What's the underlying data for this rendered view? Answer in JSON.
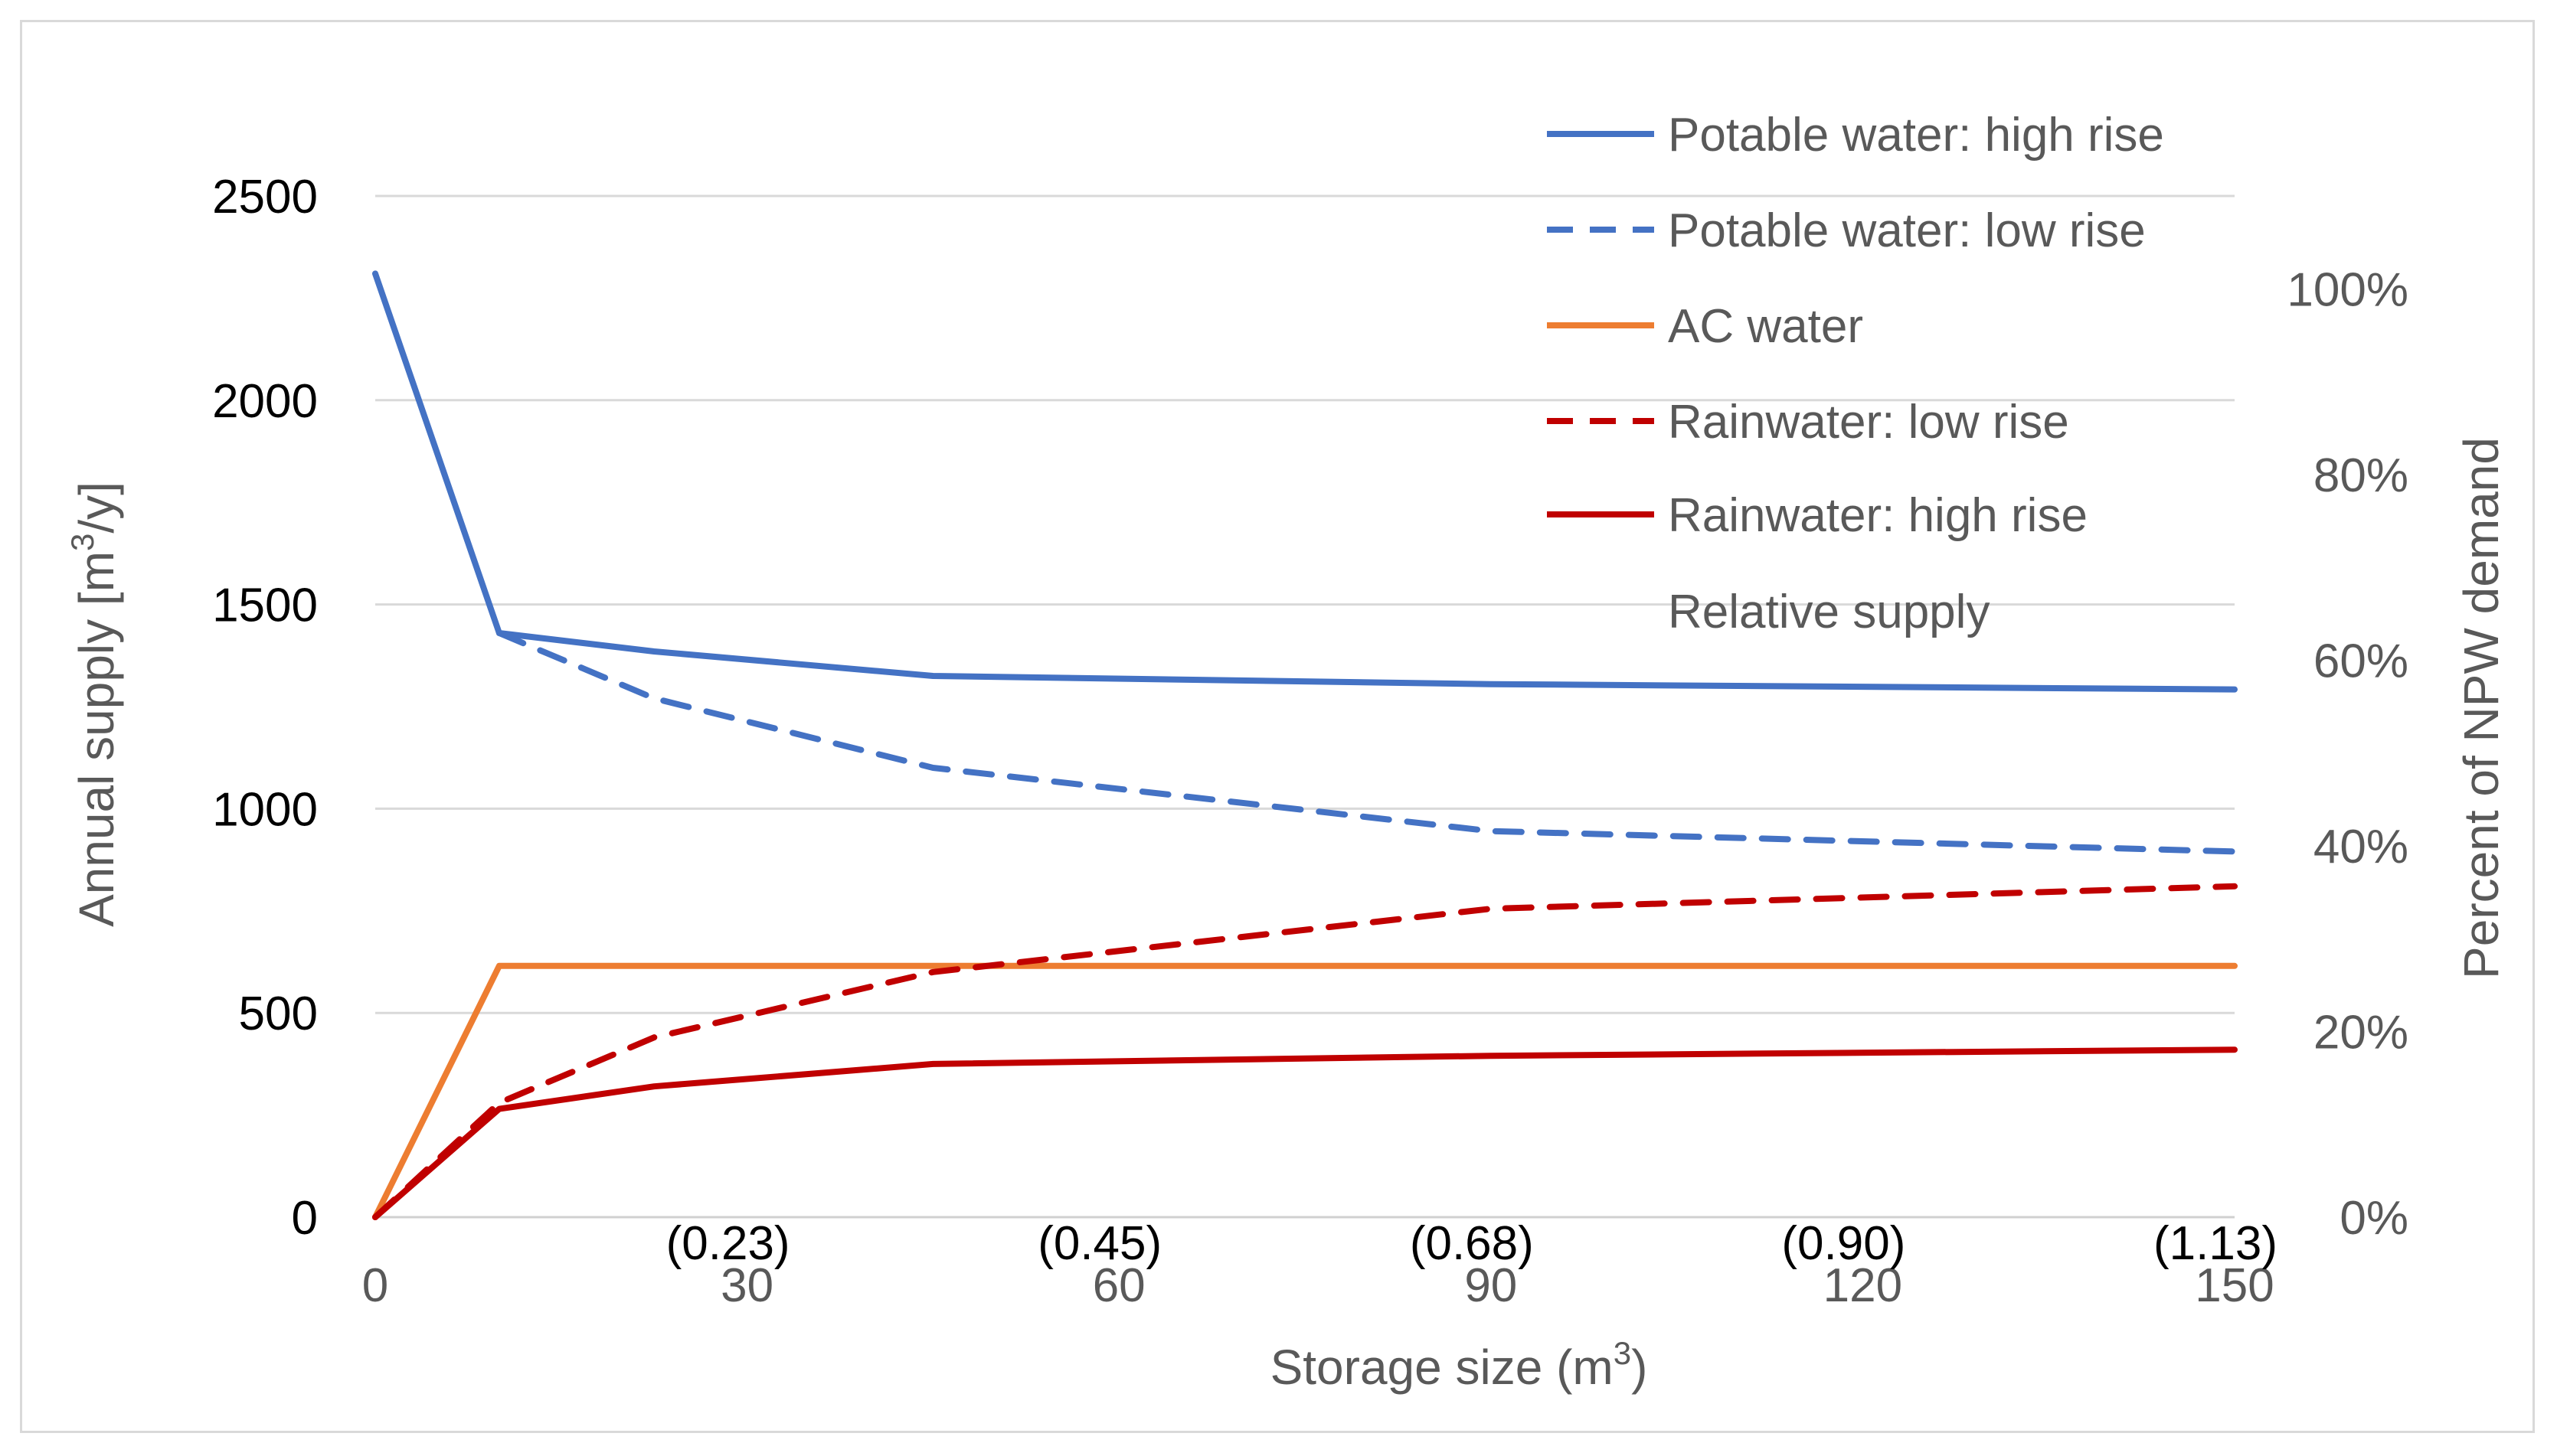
{
  "chart_data": {
    "type": "line",
    "title": "",
    "xlabel": "Storage size (m",
    "xlabel_sup": "3",
    "xlabel_end": ")",
    "ylabel": "Annual supply [m",
    "ylabel_sup": "3",
    "ylabel_end": "/y]",
    "y2label": "Percent of NPW demand",
    "xlim": [
      0,
      150
    ],
    "ylim": [
      0,
      2500
    ],
    "y2lim": [
      0,
      1.1
    ],
    "x_ticks": [
      "0",
      "30",
      "60",
      "90",
      "120",
      "150"
    ],
    "x_tick_values": [
      0,
      30,
      60,
      90,
      120,
      150
    ],
    "x_secondary_ticks": [
      "(0.23)",
      "(0.45)",
      "(0.68)",
      "(0.90)",
      "(1.13)"
    ],
    "x_secondary_tick_values": [
      30,
      60,
      90,
      120,
      150
    ],
    "y_ticks": [
      "0",
      "500",
      "1000",
      "1500",
      "2000",
      "2500"
    ],
    "y_tick_values": [
      0,
      500,
      1000,
      1500,
      2000,
      2500
    ],
    "y2_ticks": [
      "0%",
      "20%",
      "40%",
      "60%",
      "80%",
      "100%"
    ],
    "y2_tick_values": [
      0,
      0.2,
      0.4,
      0.6,
      0.8,
      1.0
    ],
    "grid": true,
    "legend_position": "top-right",
    "legend_extra_entry": "Relative supply",
    "series": [
      {
        "name": "Potable water: high rise",
        "color": "#4472c4",
        "dash": false,
        "x": [
          0,
          10,
          22.5,
          45,
          90,
          150
        ],
        "values": [
          2310,
          1430,
          1385,
          1325,
          1305,
          1292
        ]
      },
      {
        "name": "Potable water: low rise",
        "color": "#4472c4",
        "dash": true,
        "x": [
          10,
          22.5,
          45,
          90,
          150
        ],
        "values": [
          1430,
          1270,
          1100,
          945,
          895
        ]
      },
      {
        "name": "AC water",
        "color": "#ed7d31",
        "dash": false,
        "x": [
          0,
          10,
          22.5,
          45,
          90,
          150
        ],
        "values": [
          0,
          615,
          615,
          615,
          615,
          615
        ]
      },
      {
        "name": "Rainwater: low rise",
        "color": "#c00000",
        "dash": true,
        "x": [
          0,
          10,
          22.5,
          45,
          90,
          150
        ],
        "values": [
          0,
          280,
          440,
          600,
          755,
          810
        ]
      },
      {
        "name": "Rainwater: high rise",
        "color": "#c00000",
        "dash": false,
        "x": [
          0,
          10,
          22.5,
          45,
          90,
          150
        ],
        "values": [
          0,
          265,
          320,
          375,
          395,
          410
        ]
      }
    ]
  }
}
